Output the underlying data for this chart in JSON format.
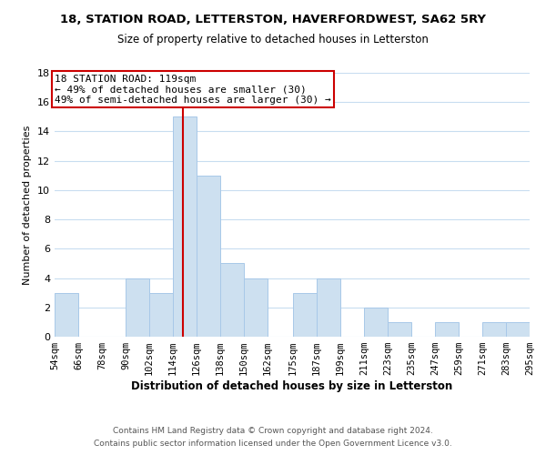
{
  "title": "18, STATION ROAD, LETTERSTON, HAVERFORDWEST, SA62 5RY",
  "subtitle": "Size of property relative to detached houses in Letterston",
  "xlabel": "Distribution of detached houses by size in Letterston",
  "ylabel": "Number of detached properties",
  "bar_color": "#cde0f0",
  "bar_edge_color": "#a8c8e8",
  "grid_color": "#c8ddf0",
  "reference_line_x": 119,
  "reference_line_color": "#cc0000",
  "annotation_line1": "18 STATION ROAD: 119sqm",
  "annotation_line2": "← 49% of detached houses are smaller (30)",
  "annotation_line3": "49% of semi-detached houses are larger (30) →",
  "annotation_box_color": "white",
  "annotation_box_edge_color": "#cc0000",
  "footer_line1": "Contains HM Land Registry data © Crown copyright and database right 2024.",
  "footer_line2": "Contains public sector information licensed under the Open Government Licence v3.0.",
  "bins": [
    54,
    66,
    78,
    90,
    102,
    114,
    126,
    138,
    150,
    162,
    175,
    187,
    199,
    211,
    223,
    235,
    247,
    259,
    271,
    283,
    295
  ],
  "counts": [
    3,
    0,
    0,
    4,
    3,
    15,
    11,
    5,
    4,
    0,
    3,
    4,
    0,
    2,
    1,
    0,
    1,
    0,
    1,
    1
  ],
  "tick_labels": [
    "54sqm",
    "66sqm",
    "78sqm",
    "90sqm",
    "102sqm",
    "114sqm",
    "126sqm",
    "138sqm",
    "150sqm",
    "162sqm",
    "175sqm",
    "187sqm",
    "199sqm",
    "211sqm",
    "223sqm",
    "235sqm",
    "247sqm",
    "259sqm",
    "271sqm",
    "283sqm",
    "295sqm"
  ],
  "ylim": [
    0,
    18
  ],
  "yticks": [
    0,
    2,
    4,
    6,
    8,
    10,
    12,
    14,
    16,
    18
  ],
  "title_fontsize": 9.5,
  "subtitle_fontsize": 8.5,
  "xlabel_fontsize": 8.5,
  "ylabel_fontsize": 8.0,
  "tick_fontsize": 7.5,
  "ytick_fontsize": 8.0,
  "annotation_fontsize": 8.0,
  "footer_fontsize": 6.5
}
